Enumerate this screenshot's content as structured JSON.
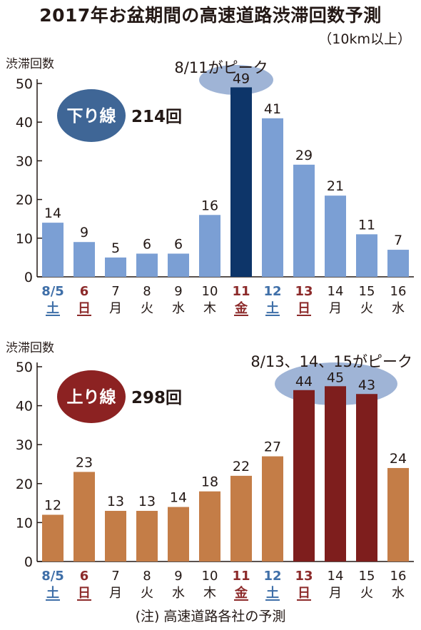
{
  "title": "2017年お盆期間の高速道路渋滞回数予測",
  "subtitle": "（10km以上）",
  "footnote": "(注) 高速道路各社の予測",
  "colors": {
    "text": "#231815",
    "down_bar": "#7b9fd4",
    "down_peak": "#0d3569",
    "down_badge": "#3f6696",
    "up_bar": "#c47d47",
    "up_peak": "#7e1e1d",
    "up_badge": "#8c2222",
    "highlight_ellipse": "#9fb4d6",
    "blue_label": "#3f6fa8",
    "red_label": "#8c2a2a"
  },
  "chart_data": [
    {
      "type": "bar",
      "id": "down",
      "ylabel": "渋滞回数",
      "ylim": [
        0,
        50
      ],
      "yticks": [
        0,
        10,
        20,
        30,
        40,
        50
      ],
      "badge_label": "下り線",
      "total_label": "214回",
      "annotation": "8/11がピーク",
      "categories": [
        "8/5",
        "6",
        "7",
        "8",
        "9",
        "10",
        "11",
        "12",
        "13",
        "14",
        "15",
        "16"
      ],
      "weekdays": [
        "土",
        "日",
        "月",
        "火",
        "水",
        "木",
        "金",
        "土",
        "日",
        "月",
        "火",
        "水"
      ],
      "label_colors": [
        "blue",
        "red",
        "black",
        "black",
        "black",
        "black",
        "red",
        "blue",
        "red",
        "black",
        "black",
        "black"
      ],
      "values": [
        14,
        9,
        5,
        6,
        6,
        16,
        49,
        41,
        29,
        21,
        11,
        7
      ],
      "peak_indices": [
        6
      ]
    },
    {
      "type": "bar",
      "id": "up",
      "ylabel": "渋滞回数",
      "ylim": [
        0,
        50
      ],
      "yticks": [
        0,
        10,
        20,
        30,
        40,
        50
      ],
      "badge_label": "上り線",
      "total_label": "298回",
      "annotation": "8/13、14、15がピーク",
      "categories": [
        "8/5",
        "6",
        "7",
        "8",
        "9",
        "10",
        "11",
        "12",
        "13",
        "14",
        "15",
        "16"
      ],
      "weekdays": [
        "土",
        "日",
        "月",
        "火",
        "水",
        "木",
        "金",
        "土",
        "日",
        "月",
        "火",
        "水"
      ],
      "label_colors": [
        "blue",
        "red",
        "black",
        "black",
        "black",
        "black",
        "red",
        "blue",
        "red",
        "black",
        "black",
        "black"
      ],
      "values": [
        12,
        23,
        13,
        13,
        14,
        18,
        22,
        27,
        44,
        45,
        43,
        24
      ],
      "peak_indices": [
        8,
        9,
        10
      ]
    }
  ]
}
